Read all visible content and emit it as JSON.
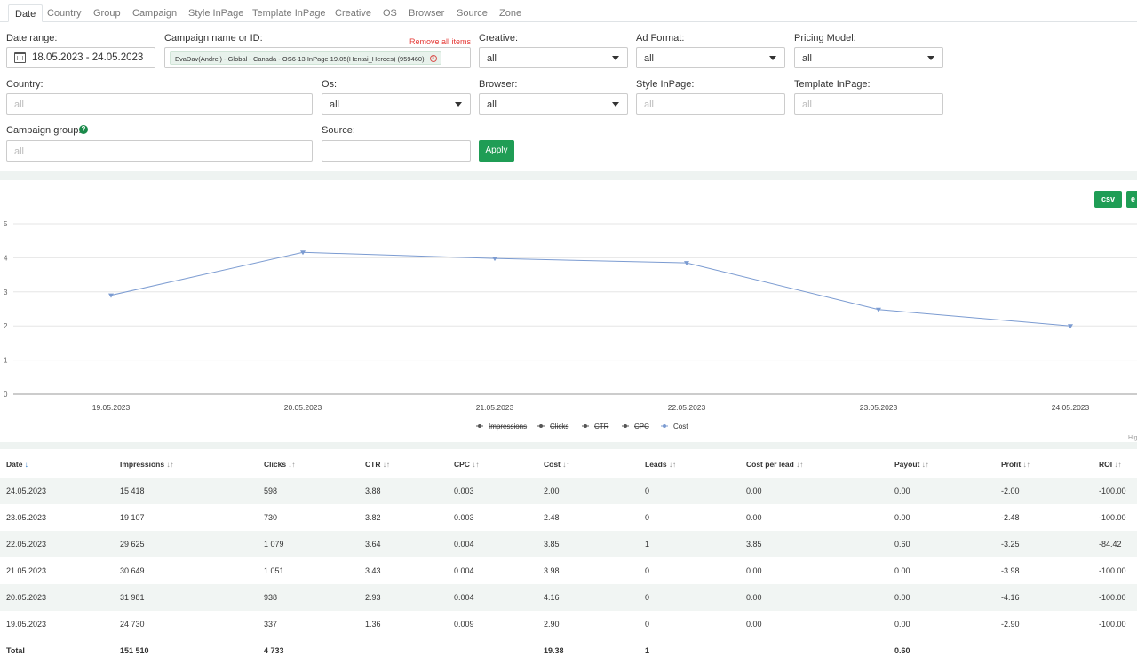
{
  "tabs": [
    "Date",
    "Country",
    "Group",
    "Campaign",
    "Style InPage",
    "Template InPage",
    "Creative",
    "OS",
    "Browser",
    "Source",
    "Zone"
  ],
  "filters": {
    "date_range_label": "Date range:",
    "date_range_value": "18.05.2023 - 24.05.2023",
    "campaign_label": "Campaign name or ID:",
    "campaign_chip": "EvaDav(Andrei) - Global - Canada - OS6-13 InPage 19.05(Hentai_Heroes) (959460)",
    "remove_all": "Remove all items",
    "creative_label": "Creative:",
    "creative_value": "all",
    "ad_format_label": "Ad Format:",
    "ad_format_value": "all",
    "pricing_model_label": "Pricing Model:",
    "pricing_model_value": "all",
    "country_label": "Country:",
    "country_placeholder": "all",
    "os_label": "Os:",
    "os_value": "all",
    "browser_label": "Browser:",
    "browser_value": "all",
    "style_inpage_label": "Style InPage:",
    "style_inpage_placeholder": "all",
    "template_inpage_label": "Template InPage:",
    "template_inpage_placeholder": "all",
    "campaign_group_label": "Campaign group:",
    "campaign_group_placeholder": "all",
    "source_label": "Source:",
    "apply": "Apply"
  },
  "export": {
    "csv": "csv",
    "second_partial": "e"
  },
  "chart_data": {
    "type": "line",
    "categories": [
      "19.05.2023",
      "20.05.2023",
      "21.05.2023",
      "22.05.2023",
      "23.05.2023",
      "24.05.2023"
    ],
    "series": [
      {
        "name": "Impressions",
        "visible": false
      },
      {
        "name": "Clicks",
        "visible": false
      },
      {
        "name": "CTR",
        "visible": false
      },
      {
        "name": "CPC",
        "visible": false
      },
      {
        "name": "Cost",
        "visible": true,
        "values": [
          2.9,
          4.16,
          3.98,
          3.85,
          2.48,
          2.0
        ]
      }
    ],
    "ylim": [
      0,
      5
    ],
    "yticks": [
      "0",
      "1",
      "2",
      "3",
      "4",
      "5"
    ],
    "grid": true,
    "legend": "bottom",
    "line_color": "#7b9bd1",
    "credit_partial": "Hig"
  },
  "table": {
    "headers": [
      "Date",
      "Impressions",
      "Clicks",
      "CTR",
      "CPC",
      "Cost",
      "Leads",
      "Cost per lead",
      "Payout",
      "Profit",
      "ROI"
    ],
    "sort_active": "↓",
    "sort_idle": "↓↑",
    "rows": [
      [
        "24.05.2023",
        "15 418",
        "598",
        "3.88",
        "0.003",
        "2.00",
        "0",
        "0.00",
        "0.00",
        "-2.00",
        "-100.00"
      ],
      [
        "23.05.2023",
        "19 107",
        "730",
        "3.82",
        "0.003",
        "2.48",
        "0",
        "0.00",
        "0.00",
        "-2.48",
        "-100.00"
      ],
      [
        "22.05.2023",
        "29 625",
        "1 079",
        "3.64",
        "0.004",
        "3.85",
        "1",
        "3.85",
        "0.60",
        "-3.25",
        "-84.42"
      ],
      [
        "21.05.2023",
        "30 649",
        "1 051",
        "3.43",
        "0.004",
        "3.98",
        "0",
        "0.00",
        "0.00",
        "-3.98",
        "-100.00"
      ],
      [
        "20.05.2023",
        "31 981",
        "938",
        "2.93",
        "0.004",
        "4.16",
        "0",
        "0.00",
        "0.00",
        "-4.16",
        "-100.00"
      ],
      [
        "19.05.2023",
        "24 730",
        "337",
        "1.36",
        "0.009",
        "2.90",
        "0",
        "0.00",
        "0.00",
        "-2.90",
        "-100.00"
      ]
    ],
    "total": [
      "Total",
      "151 510",
      "4 733",
      "",
      "",
      "19.38",
      "1",
      "",
      "0.60",
      "",
      ""
    ]
  }
}
